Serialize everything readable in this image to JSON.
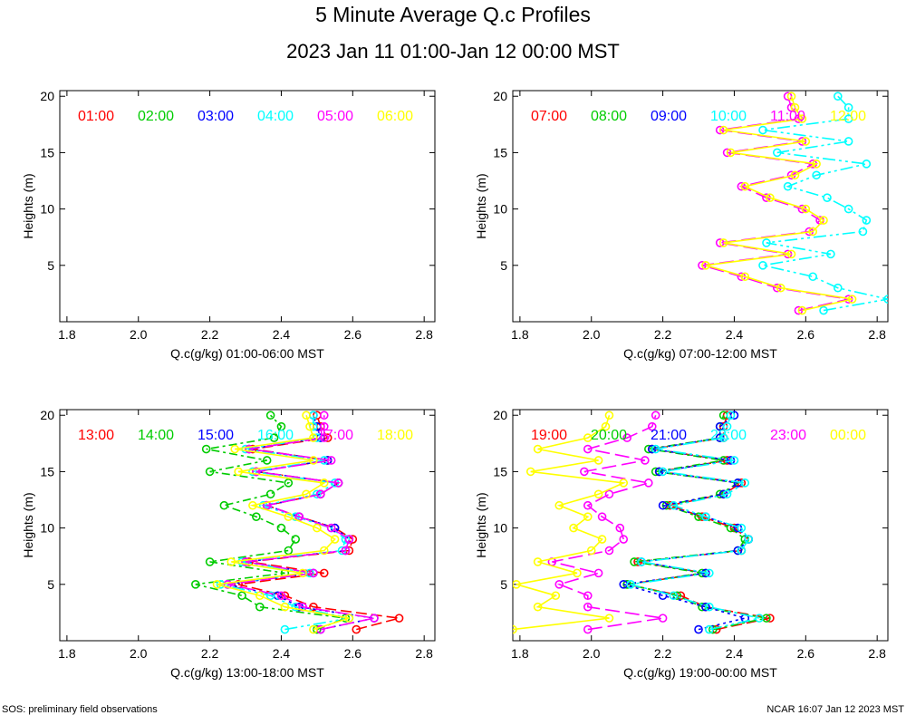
{
  "title": "5 Minute Average Q.c Profiles",
  "subtitle": "2023 Jan 11 01:00-Jan 12 00:00 MST",
  "footer_left": "SOS: preliminary field observations",
  "footer_right": "NCAR 16:07 Jan 12 2023 MST",
  "chart_data": [
    {
      "type": "line",
      "xlabel": "Q.c(g/kg) 01:00-06:00 MST",
      "ylabel": "Heights (m)",
      "xlim": [
        1.78,
        2.83
      ],
      "ylim": [
        0,
        20.5
      ],
      "xticks": [
        "1.8",
        "2.0",
        "2.2",
        "2.4",
        "2.6",
        "2.8"
      ],
      "yticks": [
        "5",
        "10",
        "15",
        "20"
      ],
      "heights": [
        1,
        2,
        3,
        4,
        5,
        6,
        7,
        8,
        9,
        10,
        11,
        12,
        13,
        14,
        15,
        16,
        17,
        18,
        19,
        20
      ],
      "series": [
        {
          "name": "01:00",
          "color": "#ff0000",
          "values": []
        },
        {
          "name": "02:00",
          "color": "#00cc00",
          "values": []
        },
        {
          "name": "03:00",
          "color": "#0000ff",
          "values": []
        },
        {
          "name": "04:00",
          "color": "#00ffff",
          "values": []
        },
        {
          "name": "05:00",
          "color": "#ff00ff",
          "values": []
        },
        {
          "name": "06:00",
          "color": "#ffff00",
          "values": []
        }
      ]
    },
    {
      "type": "line",
      "xlabel": "Q.c(g/kg) 07:00-12:00 MST",
      "ylabel": "Heights (m)",
      "xlim": [
        1.78,
        2.83
      ],
      "ylim": [
        0,
        20.5
      ],
      "xticks": [
        "1.8",
        "2.0",
        "2.2",
        "2.4",
        "2.6",
        "2.8"
      ],
      "yticks": [
        "5",
        "10",
        "15",
        "20"
      ],
      "heights": [
        1,
        2,
        3,
        4,
        5,
        6,
        7,
        8,
        9,
        10,
        11,
        12,
        13,
        14,
        15,
        16,
        17,
        18,
        19,
        20
      ],
      "series": [
        {
          "name": "07:00",
          "color": "#ff0000",
          "values": []
        },
        {
          "name": "08:00",
          "color": "#00cc00",
          "values": []
        },
        {
          "name": "09:00",
          "color": "#0000ff",
          "values": []
        },
        {
          "name": "10:00",
          "color": "#00ffff",
          "values": [
            2.65,
            2.83,
            2.69,
            2.62,
            2.48,
            2.67,
            2.49,
            2.76,
            2.77,
            2.72,
            2.66,
            2.55,
            2.63,
            2.77,
            2.52,
            2.72,
            2.48,
            2.72,
            2.72,
            2.69
          ]
        },
        {
          "name": "11:00",
          "color": "#ff00ff",
          "values": [
            2.58,
            2.72,
            2.52,
            2.42,
            2.31,
            2.55,
            2.36,
            2.61,
            2.64,
            2.59,
            2.49,
            2.42,
            2.56,
            2.62,
            2.38,
            2.59,
            2.36,
            2.58,
            2.56,
            2.55
          ]
        },
        {
          "name": "12:00",
          "color": "#ffff00",
          "values": [
            2.59,
            2.73,
            2.53,
            2.43,
            2.32,
            2.56,
            2.37,
            2.62,
            2.65,
            2.6,
            2.5,
            2.43,
            2.57,
            2.63,
            2.39,
            2.6,
            2.37,
            2.59,
            2.57,
            2.56
          ]
        }
      ]
    },
    {
      "type": "line",
      "xlabel": "Q.c(g/kg) 13:00-18:00 MST",
      "ylabel": "Heights (m)",
      "xlim": [
        1.78,
        2.83
      ],
      "ylim": [
        0,
        20.5
      ],
      "xticks": [
        "1.8",
        "2.0",
        "2.2",
        "2.4",
        "2.6",
        "2.8"
      ],
      "yticks": [
        "5",
        "10",
        "15",
        "20"
      ],
      "heights": [
        1,
        2,
        3,
        4,
        5,
        6,
        7,
        8,
        9,
        10,
        11,
        12,
        13,
        14,
        15,
        16,
        17,
        18,
        19,
        20
      ],
      "series": [
        {
          "name": "13:00",
          "color": "#ff0000",
          "values": [
            2.61,
            2.73,
            2.49,
            2.41,
            2.28,
            2.52,
            2.31,
            2.59,
            2.6,
            2.55,
            2.45,
            2.36,
            2.51,
            2.56,
            2.33,
            2.53,
            2.32,
            2.53,
            2.51,
            2.5
          ]
        },
        {
          "name": "14:00",
          "color": "#00cc00",
          "values": [
            2.5,
            2.58,
            2.34,
            2.29,
            2.16,
            2.41,
            2.2,
            2.42,
            2.44,
            2.4,
            2.33,
            2.24,
            2.37,
            2.42,
            2.2,
            2.36,
            2.19,
            2.38,
            2.4,
            2.37
          ]
        },
        {
          "name": "15:00",
          "color": "#0000ff",
          "values": [
            2.51,
            2.66,
            2.45,
            2.39,
            2.25,
            2.49,
            2.3,
            2.58,
            2.59,
            2.55,
            2.45,
            2.36,
            2.51,
            2.56,
            2.33,
            2.53,
            2.31,
            2.51,
            2.5,
            2.49
          ]
        },
        {
          "name": "16:00",
          "color": "#00ffff",
          "values": [
            2.41,
            2.59,
            2.44,
            2.37,
            2.23,
            2.48,
            2.29,
            2.57,
            2.58,
            2.54,
            2.44,
            2.35,
            2.5,
            2.55,
            2.32,
            2.52,
            2.3,
            2.5,
            2.49,
            2.49
          ]
        },
        {
          "name": "17:00",
          "color": "#ff00ff",
          "values": [
            2.51,
            2.66,
            2.46,
            2.4,
            2.25,
            2.49,
            2.3,
            2.58,
            2.59,
            2.54,
            2.45,
            2.36,
            2.51,
            2.56,
            2.33,
            2.54,
            2.31,
            2.52,
            2.52,
            2.52
          ]
        },
        {
          "name": "18:00",
          "color": "#ffff00",
          "values": [
            2.49,
            2.59,
            2.41,
            2.34,
            2.22,
            2.46,
            2.26,
            2.52,
            2.55,
            2.5,
            2.42,
            2.32,
            2.47,
            2.52,
            2.28,
            2.49,
            2.27,
            2.49,
            2.48,
            2.47
          ]
        }
      ]
    },
    {
      "type": "line",
      "xlabel": "Q.c(g/kg) 19:00-00:00 MST",
      "ylabel": "Heights (m)",
      "xlim": [
        1.78,
        2.83
      ],
      "ylim": [
        0,
        20.5
      ],
      "xticks": [
        "1.8",
        "2.0",
        "2.2",
        "2.4",
        "2.6",
        "2.8"
      ],
      "yticks": [
        "5",
        "10",
        "15",
        "20"
      ],
      "heights": [
        1,
        2,
        3,
        4,
        5,
        6,
        7,
        8,
        9,
        10,
        11,
        12,
        13,
        14,
        15,
        16,
        17,
        18,
        19,
        20
      ],
      "series": [
        {
          "name": "19:00",
          "color": "#ff0000",
          "values": [
            2.35,
            2.5,
            2.32,
            2.25,
            2.1,
            2.32,
            2.13,
            2.42,
            2.44,
            2.4,
            2.31,
            2.22,
            2.37,
            2.42,
            2.19,
            2.38,
            2.17,
            2.37,
            2.37,
            2.38
          ]
        },
        {
          "name": "20:00",
          "color": "#00cc00",
          "values": [
            2.34,
            2.49,
            2.31,
            2.24,
            2.1,
            2.31,
            2.12,
            2.41,
            2.43,
            2.39,
            2.3,
            2.21,
            2.36,
            2.41,
            2.18,
            2.37,
            2.16,
            2.36,
            2.36,
            2.37
          ]
        },
        {
          "name": "21:00",
          "color": "#0000ff",
          "values": [
            2.3,
            2.43,
            2.32,
            2.2,
            2.09,
            2.32,
            2.14,
            2.41,
            2.44,
            2.41,
            2.32,
            2.2,
            2.37,
            2.41,
            2.19,
            2.39,
            2.17,
            2.36,
            2.36,
            2.4
          ]
        },
        {
          "name": "22:00",
          "color": "#00ffff",
          "values": [
            2.33,
            2.47,
            2.33,
            2.23,
            2.11,
            2.33,
            2.14,
            2.42,
            2.44,
            2.42,
            2.32,
            2.23,
            2.38,
            2.43,
            2.2,
            2.4,
            2.18,
            2.37,
            2.38,
            2.39
          ]
        },
        {
          "name": "23:00",
          "color": "#ff00ff",
          "values": [
            1.99,
            2.2,
            1.99,
            1.99,
            1.91,
            2.02,
            1.89,
            2.05,
            2.09,
            2.08,
            2.03,
            1.99,
            2.05,
            2.16,
            1.98,
            2.15,
            1.99,
            2.1,
            2.17,
            2.18
          ]
        },
        {
          "name": "00:00",
          "color": "#ffff00",
          "values": [
            1.78,
            2.05,
            1.85,
            1.9,
            1.79,
            1.96,
            1.85,
            2.0,
            2.03,
            1.95,
            1.99,
            1.91,
            2.02,
            2.09,
            1.83,
            2.02,
            1.85,
            1.99,
            2.04,
            2.05
          ]
        }
      ]
    }
  ]
}
